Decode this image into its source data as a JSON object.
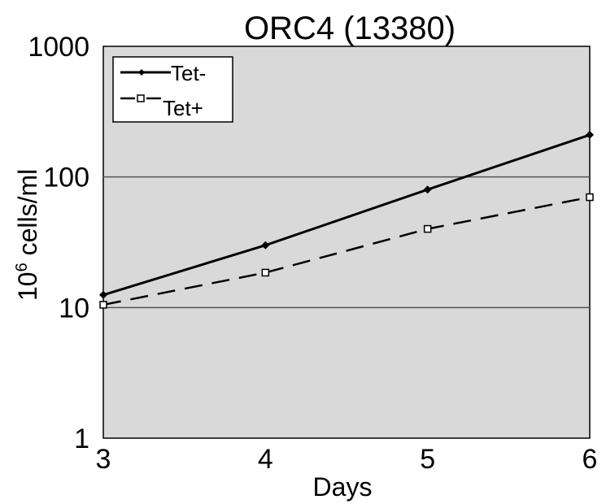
{
  "chart_data": {
    "type": "line",
    "title": "ORC4 (13380)",
    "xlabel": "Days",
    "ylabel_base": "10",
    "ylabel_exp": "6",
    "ylabel_rest": " cells/ml",
    "y_scale": "log",
    "ylim": [
      1,
      1000
    ],
    "xlim": [
      3,
      6
    ],
    "x_ticks": [
      "3",
      "4",
      "5",
      "6"
    ],
    "y_ticks": [
      "1",
      "10",
      "100",
      "1000"
    ],
    "grid": true,
    "legend_position": "top-left",
    "plot_background": "#d9d9d9",
    "series": [
      {
        "name": "Tet-",
        "marker": "filled-diamond",
        "line": "solid",
        "color": "#000000",
        "x": [
          3,
          4,
          5,
          6
        ],
        "y": [
          12.5,
          30,
          80,
          210
        ]
      },
      {
        "name": "Tet+",
        "marker": "open-square",
        "line": "dashed",
        "color": "#000000",
        "x": [
          3,
          4,
          5,
          6
        ],
        "y": [
          10.5,
          18.5,
          40,
          70
        ]
      }
    ]
  }
}
